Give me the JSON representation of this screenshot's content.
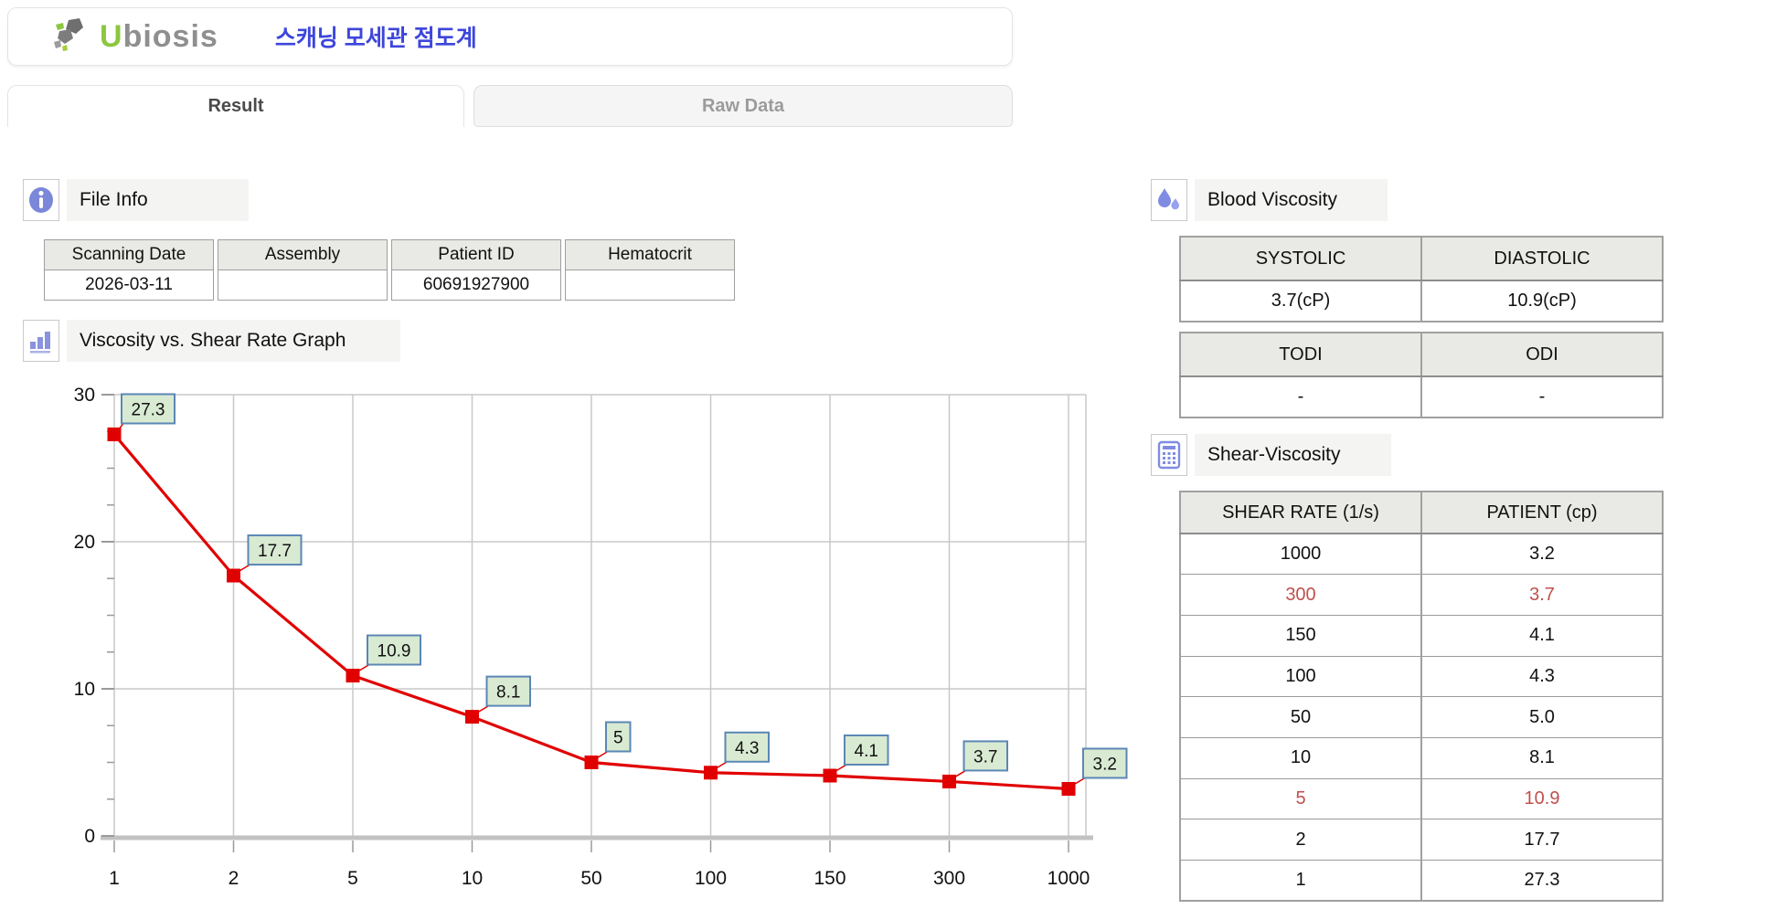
{
  "header": {
    "logo_first_letter": "U",
    "logo_rest": "biosis",
    "app_title_korean": "스캐닝 모세관 점도계"
  },
  "tabs": {
    "result_label": "Result",
    "raw_data_label": "Raw Data"
  },
  "file_info": {
    "section_title": "File Info",
    "fields": [
      {
        "label": "Scanning Date",
        "value": "2026-03-11"
      },
      {
        "label": "Assembly",
        "value": ""
      },
      {
        "label": "Patient ID",
        "value": "60691927900"
      },
      {
        "label": "Hematocrit",
        "value": ""
      }
    ]
  },
  "graph_section": {
    "section_title": "Viscosity vs. Shear Rate Graph"
  },
  "chart_data": {
    "type": "line",
    "title": "Viscosity vs. Shear Rate Graph",
    "x_categories": [
      "1",
      "2",
      "5",
      "10",
      "50",
      "100",
      "150",
      "300",
      "1000"
    ],
    "values": [
      27.3,
      17.7,
      10.9,
      8.1,
      5,
      4.3,
      4.1,
      3.7,
      3.2
    ],
    "point_labels": [
      "27.3",
      "17.7",
      "10.9",
      "8.1",
      "5",
      "4.3",
      "4.1",
      "3.7",
      "3.2"
    ],
    "ylim": [
      0,
      30
    ],
    "yticks": [
      0,
      10,
      20,
      30
    ],
    "minor_tick_step": 2.5,
    "grid": true,
    "legend": "none",
    "line_color": "#e10000",
    "marker": "square",
    "label_box_fill": "#d9ead3",
    "label_box_border": "#5b87b5",
    "grid_color": "#c8c8c8"
  },
  "blood_viscosity": {
    "section_title": "Blood Viscosity",
    "table1": {
      "headers": [
        "SYSTOLIC",
        "DIASTOLIC"
      ],
      "values": [
        "3.7(cP)",
        "10.9(cP)"
      ]
    },
    "table2": {
      "headers": [
        "TODI",
        "ODI"
      ],
      "values": [
        "-",
        "-"
      ]
    }
  },
  "shear_viscosity": {
    "section_title": "Shear-Viscosity",
    "headers": [
      "SHEAR RATE (1/s)",
      "PATIENT (cp)"
    ],
    "rows": [
      {
        "shear_rate": "1000",
        "patient": "3.2",
        "highlight": false
      },
      {
        "shear_rate": "300",
        "patient": "3.7",
        "highlight": true
      },
      {
        "shear_rate": "150",
        "patient": "4.1",
        "highlight": false
      },
      {
        "shear_rate": "100",
        "patient": "4.3",
        "highlight": false
      },
      {
        "shear_rate": "50",
        "patient": "5.0",
        "highlight": false
      },
      {
        "shear_rate": "10",
        "patient": "8.1",
        "highlight": false
      },
      {
        "shear_rate": "5",
        "patient": "10.9",
        "highlight": true
      },
      {
        "shear_rate": "2",
        "patient": "17.7",
        "highlight": false
      },
      {
        "shear_rate": "1",
        "patient": "27.3",
        "highlight": false
      }
    ]
  },
  "colors": {
    "korean_title_blue": "#3d46db",
    "logo_green": "#8dc63f",
    "logo_gray": "#8f8f8f",
    "highlight_red": "#c0504d",
    "chart_line_red": "#e10000",
    "icon_purple": "#7f8ce2",
    "table_header_bg": "#e9e9e5"
  }
}
